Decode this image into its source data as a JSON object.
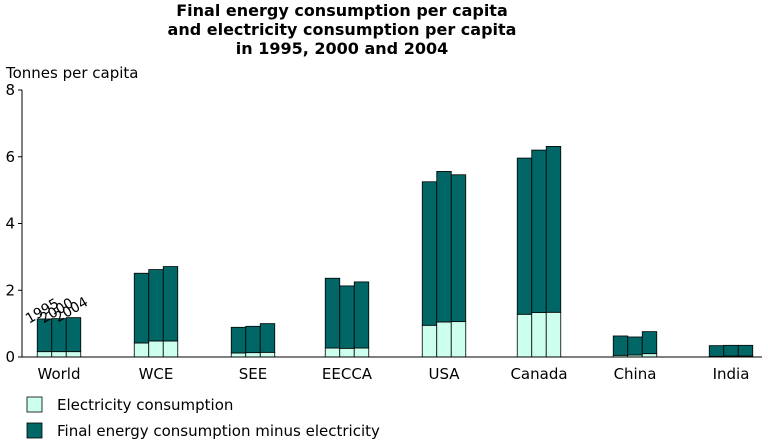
{
  "chart_data": {
    "type": "bar",
    "stacked": true,
    "title": [
      "Final energy consumption per capita",
      "and electricity consumption per capita",
      "in 1995, 2000 and 2004"
    ],
    "ylabel": "Tonnes per capita",
    "ylim": [
      0,
      8
    ],
    "yticks": [
      "0",
      "2",
      "4",
      "6",
      "8"
    ],
    "grid": false,
    "categories": [
      "World",
      "WCE",
      "SEE",
      "EECCA",
      "USA",
      "Canada",
      "China",
      "India"
    ],
    "years": [
      "1995",
      "2000",
      "2004"
    ],
    "series": [
      {
        "name": "Electricity consumption",
        "color": "#ccffee",
        "values": [
          [
            0.16,
            0.16,
            0.16
          ],
          [
            0.42,
            0.48,
            0.48
          ],
          [
            0.12,
            0.13,
            0.14
          ],
          [
            0.27,
            0.26,
            0.27
          ],
          [
            0.95,
            1.05,
            1.06
          ],
          [
            1.28,
            1.33,
            1.34
          ],
          [
            0.05,
            0.06,
            0.1
          ],
          [
            0.02,
            0.03,
            0.03
          ]
        ]
      },
      {
        "name": "Final energy consumption minus electricity",
        "color": "#006666",
        "values": [
          [
            0.98,
            0.99,
            1.02
          ],
          [
            2.09,
            2.14,
            2.23
          ],
          [
            0.77,
            0.79,
            0.86
          ],
          [
            2.09,
            1.87,
            1.98
          ],
          [
            4.3,
            4.51,
            4.4
          ],
          [
            4.68,
            4.87,
            4.97
          ],
          [
            0.58,
            0.54,
            0.66
          ],
          [
            0.32,
            0.32,
            0.32
          ]
        ]
      }
    ]
  }
}
